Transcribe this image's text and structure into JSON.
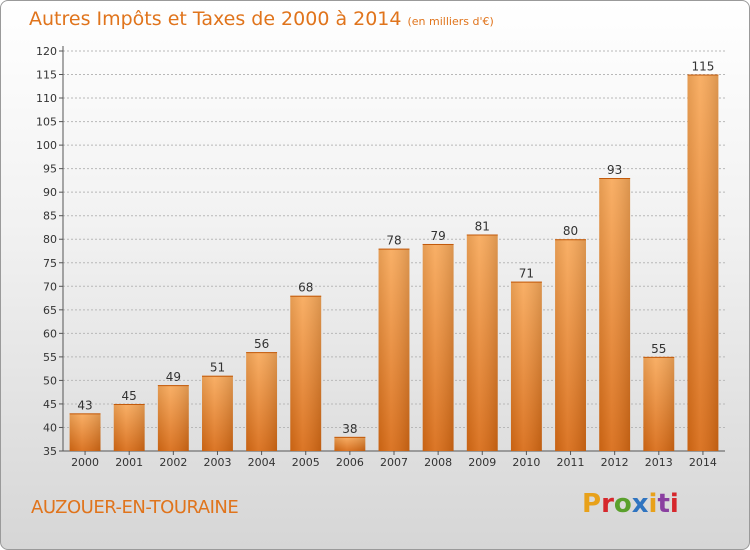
{
  "header": {
    "title": "Autres Impôts et Taxes de 2000 à 2014",
    "unit_note": "(en milliers d'€)"
  },
  "footer": {
    "commune": "AUZOUER-EN-TOURAINE",
    "logo_text": "Proxiti",
    "logo_colors": [
      "#e8a11a",
      "#d6272c",
      "#5aa02c",
      "#2f74c0",
      "#e8a11a",
      "#8a3fa0",
      "#d6272c"
    ]
  },
  "colors": {
    "bar_light": "#f8a95a",
    "bar_dark": "#d86a14",
    "accent": "#e0741c",
    "grid": "#b8b8b8"
  },
  "chart_data": {
    "type": "bar",
    "title": "Autres Impôts et Taxes de 2000 à 2014",
    "subtitle": "(en milliers d'€)",
    "xlabel": "",
    "ylabel": "",
    "categories": [
      "2000",
      "2001",
      "2002",
      "2003",
      "2004",
      "2005",
      "2006",
      "2007",
      "2008",
      "2009",
      "2010",
      "2011",
      "2012",
      "2013",
      "2014"
    ],
    "values": [
      43,
      45,
      49,
      51,
      56,
      68,
      38,
      78,
      79,
      81,
      71,
      80,
      93,
      55,
      115
    ],
    "ylim": [
      35,
      120
    ],
    "yticks": [
      35,
      40,
      45,
      50,
      55,
      60,
      65,
      70,
      75,
      80,
      85,
      90,
      95,
      100,
      105,
      110,
      115,
      120
    ],
    "grid": true,
    "data_labels": true
  }
}
